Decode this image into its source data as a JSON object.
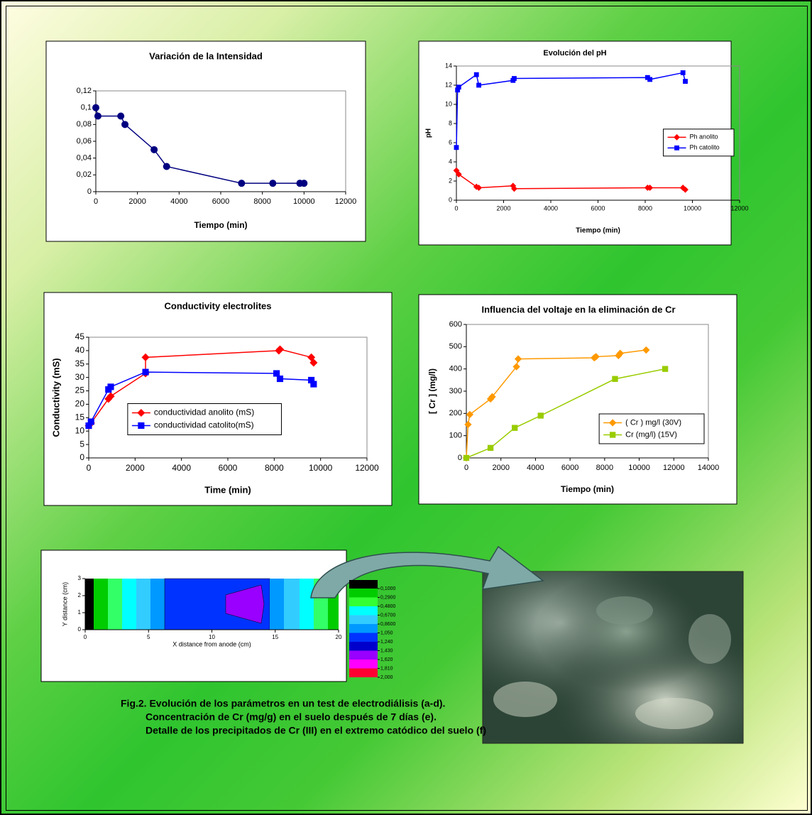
{
  "chart_data": [
    {
      "type": "line",
      "title": "Variación de la Intensidad",
      "xlabel": "Tiempo (min)",
      "xlim": [
        0,
        12000
      ],
      "xticks": [
        0,
        2000,
        4000,
        6000,
        8000,
        10000,
        12000
      ],
      "ylim": [
        0,
        0.12
      ],
      "yticks": [
        0,
        {
          "value": 0.02,
          "label": "0,02"
        },
        {
          "value": 0.04,
          "label": "0,04"
        },
        {
          "value": 0.06,
          "label": "0,06"
        },
        {
          "value": 0.08,
          "label": "0,08"
        },
        {
          "value": 0.1,
          "label": "0,1"
        },
        {
          "value": 0.12,
          "label": "0,12"
        }
      ],
      "series": [
        {
          "color": "#000080",
          "marker": "circle",
          "x": [
            0,
            100,
            1200,
            1400,
            2800,
            3400,
            7000,
            8500,
            9800,
            10000
          ],
          "values": [
            0.1,
            0.09,
            0.09,
            0.08,
            0.05,
            0.03,
            0.01,
            0.01,
            0.01,
            0.01
          ]
        }
      ]
    },
    {
      "type": "line",
      "title": "Evolución del pH",
      "xlabel": "Tiempo (min)",
      "ylabel": "pH",
      "legend": "right",
      "xlim": [
        0,
        12000
      ],
      "xticks": [
        0,
        2000,
        4000,
        6000,
        8000,
        10000,
        12000
      ],
      "ylim": [
        0,
        14
      ],
      "yticks": [
        0,
        2,
        4,
        6,
        8,
        10,
        12,
        14
      ],
      "series": [
        {
          "name": "Ph anolito",
          "color": "#ff0000",
          "marker": "diamond",
          "x": [
            0,
            100,
            850,
            950,
            2400,
            2450,
            8100,
            8200,
            9600,
            9700
          ],
          "values": [
            3.1,
            2.7,
            1.4,
            1.3,
            1.5,
            1.2,
            1.3,
            1.3,
            1.3,
            1.1
          ]
        },
        {
          "name": "Ph catolito",
          "color": "#0000ff",
          "marker": "square",
          "x": [
            0,
            50,
            100,
            850,
            950,
            2400,
            2450,
            8100,
            8200,
            9600,
            9700
          ],
          "values": [
            5.5,
            11.5,
            11.8,
            13.1,
            12,
            12.5,
            12.7,
            12.8,
            12.6,
            13.3,
            12.4
          ]
        }
      ]
    },
    {
      "type": "line",
      "title": "Conductivity electrolites",
      "xlabel": "Time (min)",
      "ylabel": "Conductivity (mS)",
      "legend": "center",
      "xlim": [
        0,
        12000
      ],
      "xticks": [
        0,
        2000,
        4000,
        6000,
        8000,
        10000,
        12000
      ],
      "ylim": [
        0,
        45
      ],
      "yticks": [
        0,
        5,
        10,
        15,
        20,
        25,
        30,
        35,
        40,
        45
      ],
      "series": [
        {
          "name": "conductividad anolito (mS)",
          "color": "#ff0000",
          "marker": "diamond",
          "x": [
            0,
            100,
            850,
            950,
            2450,
            2450,
            8200,
            8250,
            9600,
            9700
          ],
          "values": [
            12,
            13,
            22,
            23,
            31.5,
            37.5,
            40,
            40.5,
            37.5,
            35.5
          ]
        },
        {
          "name": "conductividad catolito(mS)",
          "color": "#0000ff",
          "marker": "square",
          "x": [
            0,
            100,
            850,
            950,
            2450,
            8100,
            8250,
            9600,
            9700
          ],
          "values": [
            12,
            13.5,
            25.5,
            26.5,
            32,
            31.5,
            29.5,
            29,
            27.5
          ]
        }
      ]
    },
    {
      "type": "line",
      "title": "Influencia del voltaje en la eliminación de Cr",
      "xlabel": "Tiempo (min)",
      "ylabel": "[ Cr ] (mg/l)",
      "legend": "lower-right",
      "xlim": [
        0,
        14000
      ],
      "xticks": [
        0,
        2000,
        4000,
        6000,
        8000,
        10000,
        12000,
        14000
      ],
      "ylim": [
        0,
        600
      ],
      "yticks": [
        0,
        100,
        200,
        300,
        400,
        500,
        600
      ],
      "series": [
        {
          "name": "( Cr ) mg/l (30V)",
          "color": "#ff9900",
          "marker": "diamond",
          "x": [
            0,
            100,
            200,
            1400,
            1500,
            2900,
            3000,
            7400,
            7500,
            8800,
            8900,
            10400
          ],
          "values": [
            0,
            150,
            195,
            265,
            275,
            410,
            445,
            450,
            455,
            460,
            470,
            485
          ]
        },
        {
          "name": "Cr (mg/l) (15V)",
          "color": "#99cc00",
          "marker": "square",
          "x": [
            0,
            1400,
            2800,
            4300,
            8600,
            11500
          ],
          "values": [
            0,
            45,
            135,
            190,
            355,
            400
          ]
        }
      ]
    },
    {
      "type": "contour",
      "xlabel": "X distance from anode (cm)",
      "ylabel": "Y distance (cm)",
      "xlim": [
        0,
        20
      ],
      "xticks": [
        0,
        5,
        10,
        15,
        20
      ],
      "ylim": [
        0,
        3
      ],
      "yticks": [
        0,
        1,
        2,
        3
      ],
      "levels": [
        {
          "value": 0.1,
          "label": "0,1000"
        },
        {
          "value": 0.29,
          "label": "0,2900"
        },
        {
          "value": 0.48,
          "label": "0,4800"
        },
        {
          "value": 0.67,
          "label": "0,6700"
        },
        {
          "value": 0.86,
          "label": "0,8600"
        },
        {
          "value": 1.05,
          "label": "1,050"
        },
        {
          "value": 1.24,
          "label": "1,240"
        },
        {
          "value": 1.43,
          "label": "1,430"
        },
        {
          "value": 1.62,
          "label": "1,620"
        },
        {
          "value": 1.81,
          "label": "1,810"
        },
        {
          "value": 2,
          "label": "2,000"
        }
      ],
      "colors": [
        "#000000",
        "#00cc00",
        "#33ff33",
        "#00ffff",
        "#33ccff",
        "#0099ff",
        "#0033ff",
        "#0000cc",
        "#9900ff",
        "#ff00ff",
        "#ff0033"
      ]
    }
  ],
  "caption": {
    "lines": [
      "Fig.2. Evolución de los parámetros en un test de electrodiálisis (a-d).",
      "Concentración de Cr (mg/g) en el suelo después de 7 días (e).",
      "Detalle de los precipitados de Cr (III) en el extremo catódico del suelo (f)"
    ]
  }
}
